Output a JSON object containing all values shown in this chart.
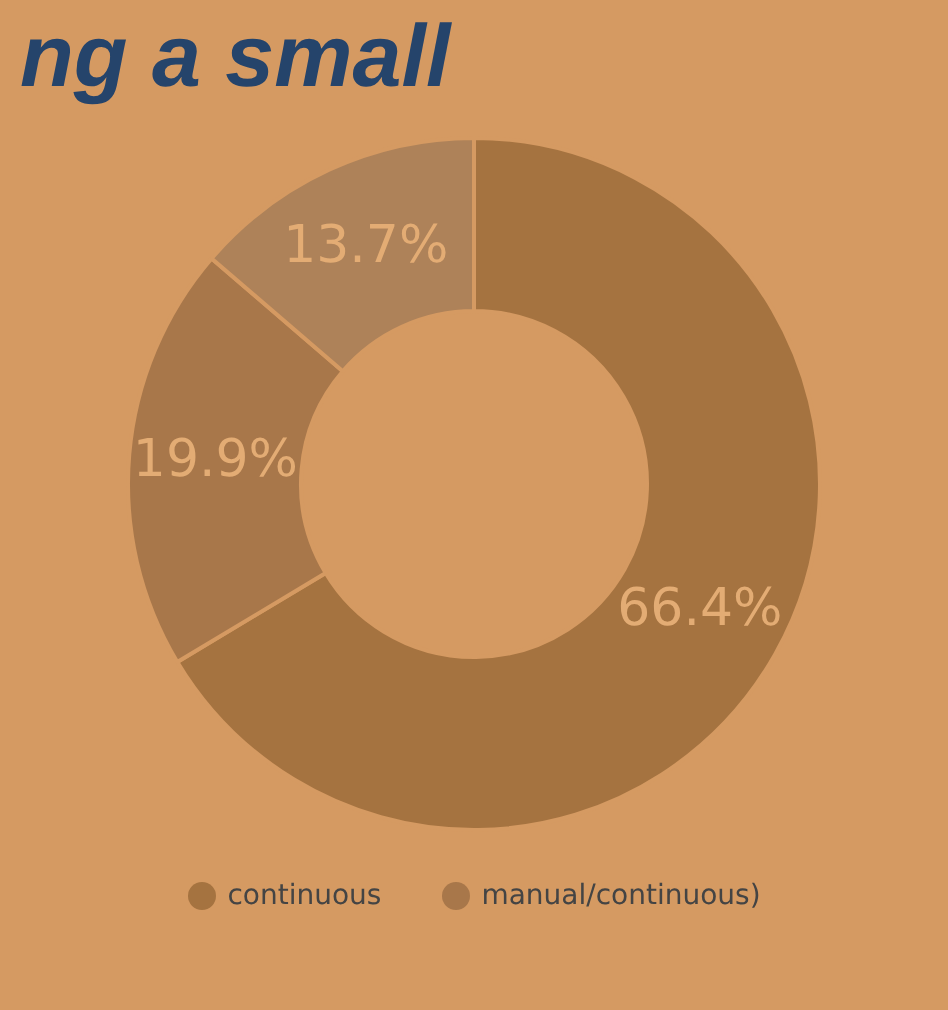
{
  "chart_data": {
    "type": "donut",
    "annotations": [
      "ng a small"
    ],
    "categories": [
      "continuous",
      "manual/continuous)",
      null
    ],
    "values": [
      66.4,
      19.9,
      13.7
    ],
    "value_labels": [
      "66.4%",
      "19.9%",
      "13.7%"
    ],
    "colors": [
      "#a57340",
      "#a8774a",
      "#ae8259"
    ],
    "legend": "bottom"
  }
}
